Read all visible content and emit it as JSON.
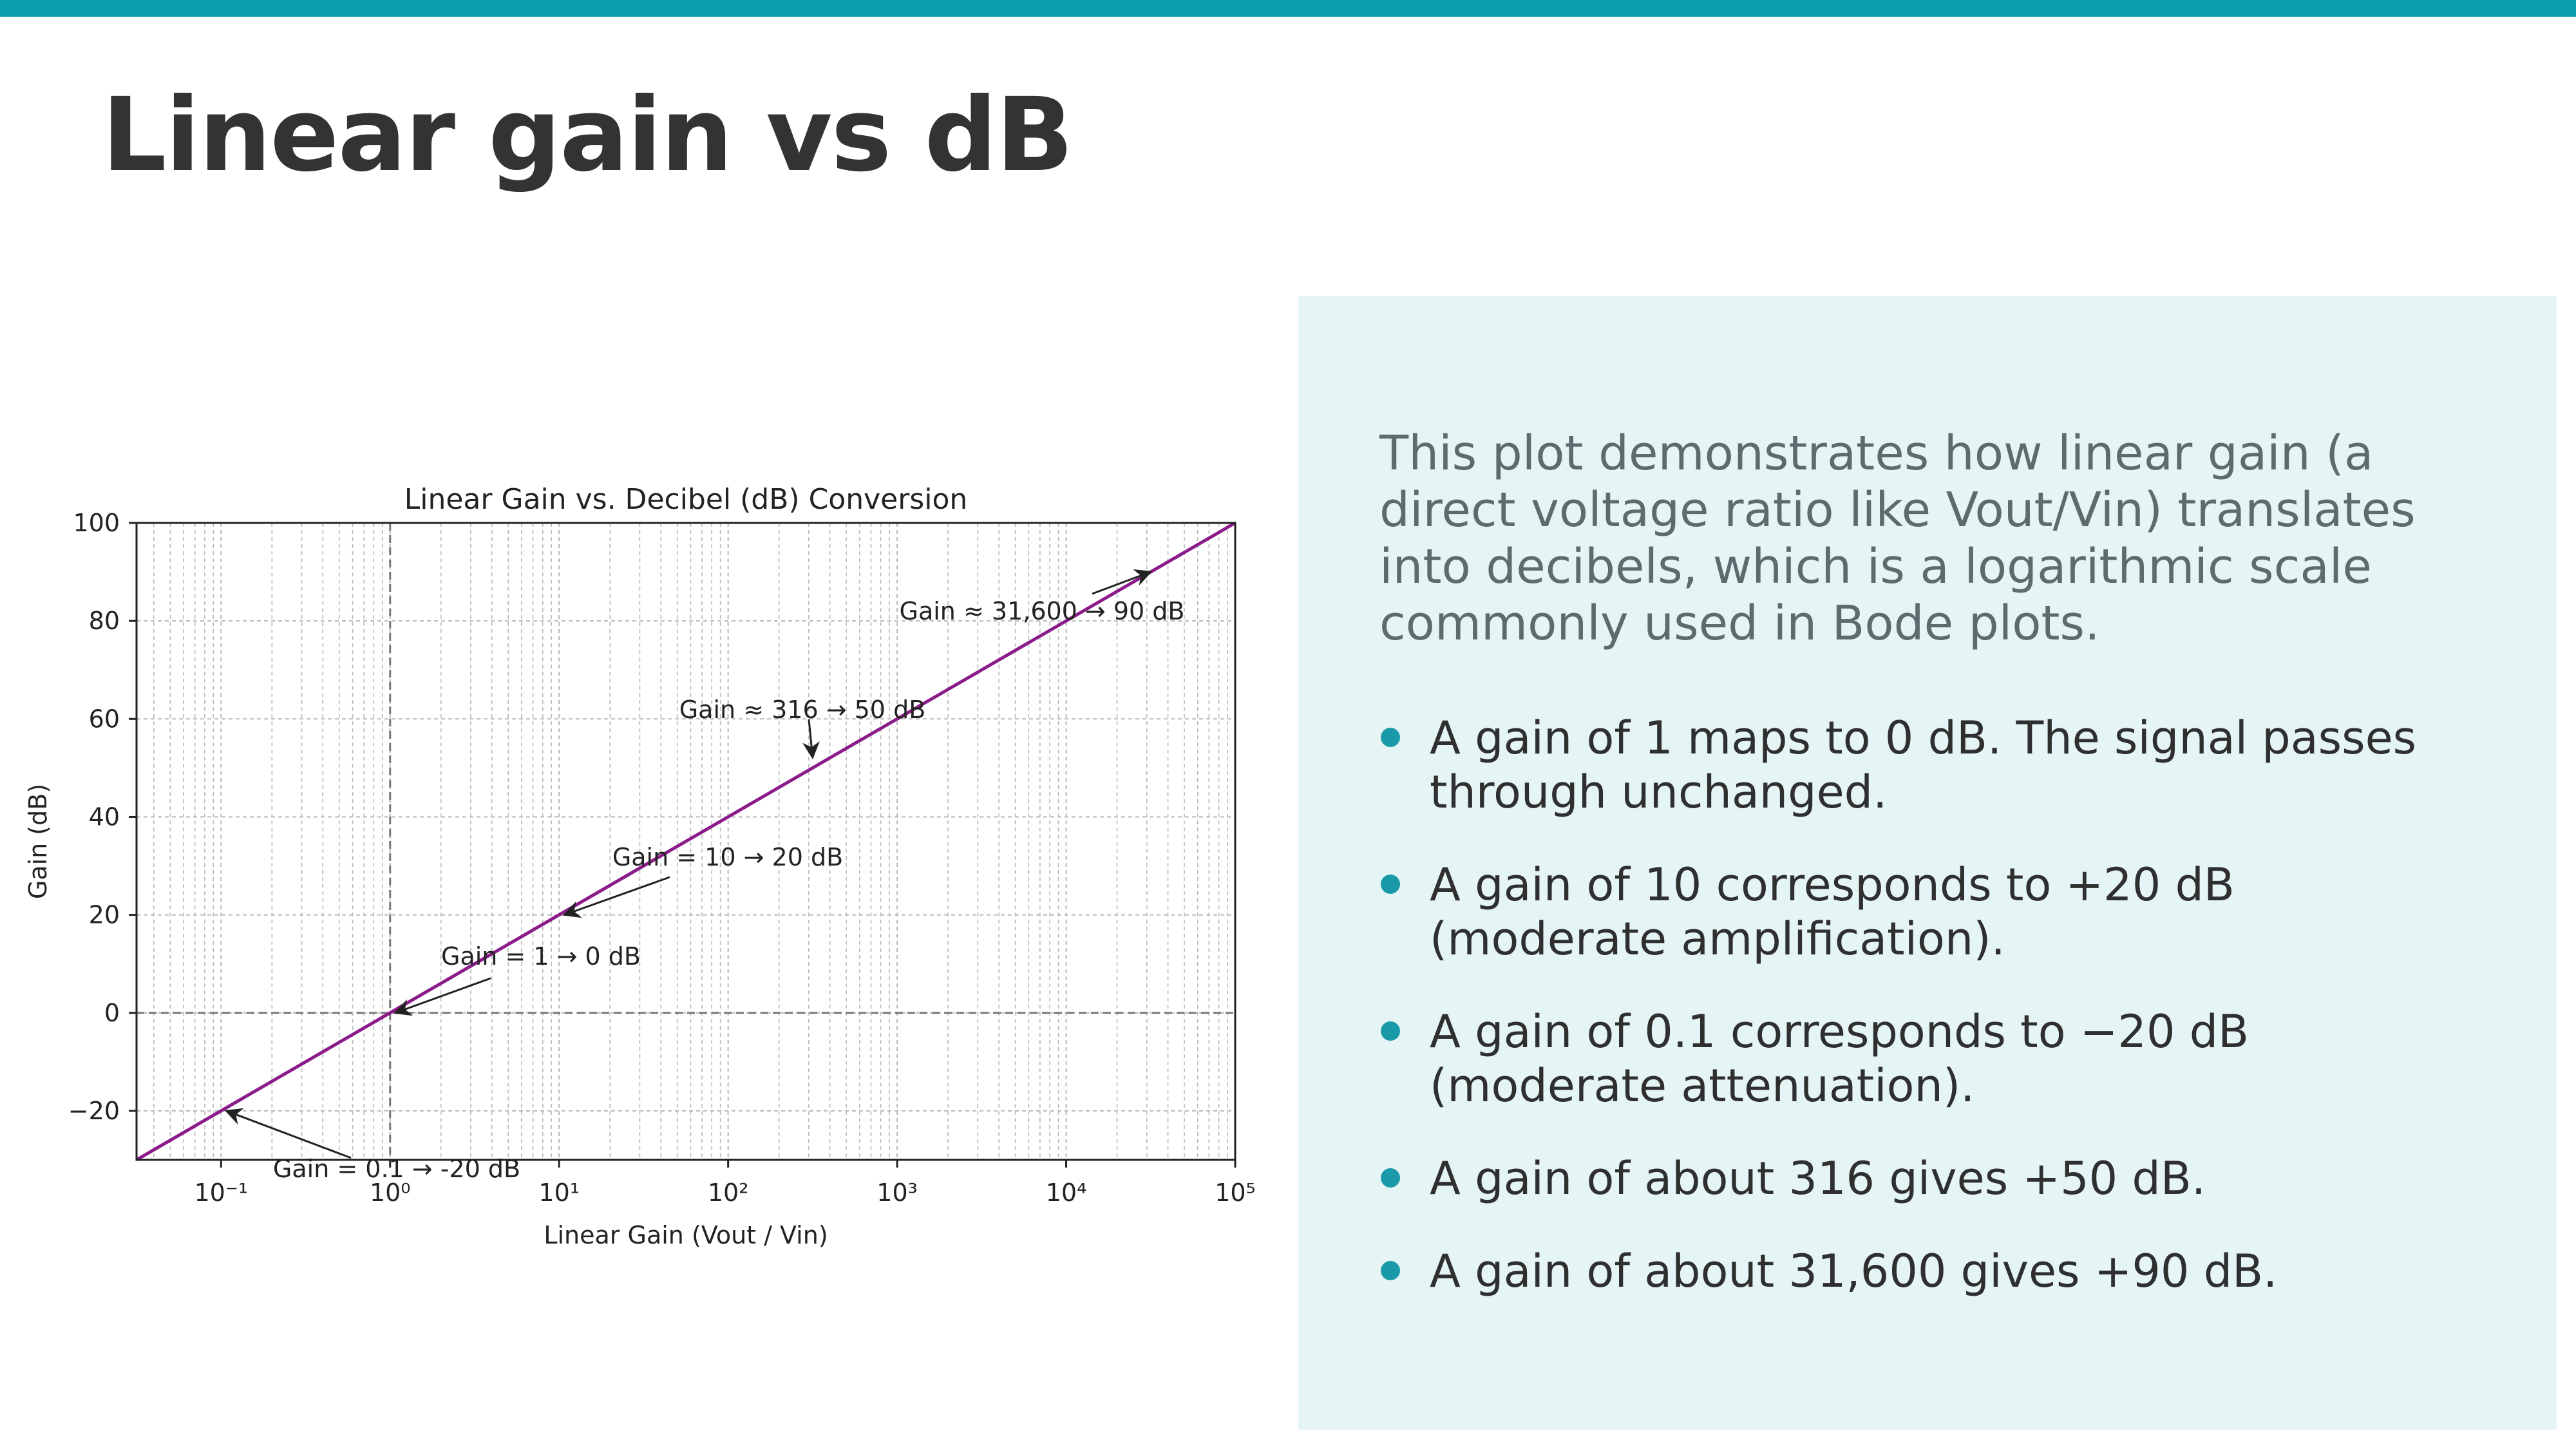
{
  "slide": {
    "title": "Linear gain vs dB",
    "accent_color": "#0aa0b0",
    "panel_color": "#e5f5f5",
    "bullet_color": "#1a9aa8"
  },
  "panel": {
    "intro": "This plot demonstrates how linear gain (a direct voltage ratio like Vout/Vin) translates into decibels, which is a logarithmic scale commonly used in Bode plots.",
    "bullets": [
      "A gain of 1 maps to 0 dB. The signal passes through unchanged.",
      "A gain of 10 corresponds to +20 dB (moderate amplification).",
      "A gain of 0.1 corresponds to −20 dB (moderate attenuation).",
      "A gain of about 316 gives +50 dB.",
      "A gain of about 31,600 gives +90 dB."
    ]
  },
  "chart_data": {
    "type": "line",
    "title": "Linear Gain vs. Decibel (dB) Conversion",
    "xlabel": "Linear Gain (Vout / Vin)",
    "ylabel": "Gain (dB)",
    "xscale": "log",
    "xlim": [
      0.0316,
      100000
    ],
    "ylim": [
      -30,
      100
    ],
    "grid": true,
    "x_ticks": [
      0.1,
      1,
      10,
      100,
      1000,
      10000,
      100000
    ],
    "x_tick_labels": [
      "10⁻¹",
      "10⁰",
      "10¹",
      "10²",
      "10³",
      "10⁴",
      "10⁵"
    ],
    "y_ticks": [
      -20,
      0,
      20,
      40,
      60,
      80,
      100
    ],
    "y_tick_labels": [
      "−20",
      "0",
      "20",
      "40",
      "60",
      "80",
      "100"
    ],
    "reference_lines": {
      "x": 1,
      "y": 0
    },
    "line_color": "#8b1a8b",
    "series": [
      {
        "x": [
          0.0316,
          100000
        ],
        "y": [
          -30,
          100
        ]
      }
    ],
    "annotations": [
      {
        "text": "Gain = 0.1 → -20 dB",
        "x": 0.1,
        "y": -20
      },
      {
        "text": "Gain = 1 → 0 dB",
        "x": 1,
        "y": 0
      },
      {
        "text": "Gain = 10 → 20 dB",
        "x": 10,
        "y": 20
      },
      {
        "text": "Gain ≈ 316 → 50 dB",
        "x": 316,
        "y": 50
      },
      {
        "text": "Gain ≈ 31,600 → 90 dB",
        "x": 31600,
        "y": 90
      }
    ]
  }
}
